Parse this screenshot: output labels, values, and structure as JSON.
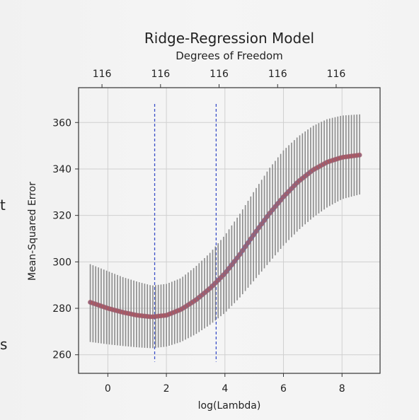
{
  "slide_fragments": [
    "t",
    "s"
  ],
  "chart_data": {
    "type": "scatter",
    "title": "Ridge-Regression Model",
    "top_axis_label": "Degrees of Freedom",
    "top_tick_labels": [
      "116",
      "116",
      "116",
      "116",
      "116"
    ],
    "xlabel": "log(Lambda)",
    "ylabel": "Mean-Squared Error",
    "xlim": [
      -1.0,
      9.3
    ],
    "ylim": [
      252,
      375
    ],
    "x_ticks": [
      0,
      2,
      4,
      6,
      8
    ],
    "y_ticks": [
      260,
      280,
      300,
      320,
      340,
      360
    ],
    "grid": true,
    "vlines": [
      1.6,
      3.7
    ],
    "vline_range": [
      257,
      368
    ],
    "curve": {
      "x": [
        -0.6,
        0.0,
        0.5,
        1.0,
        1.5,
        2.0,
        2.5,
        3.0,
        3.5,
        4.0,
        4.5,
        5.0,
        5.5,
        6.0,
        6.5,
        7.0,
        7.5,
        8.0,
        8.6
      ],
      "y": [
        282.6,
        280.0,
        278.3,
        277.0,
        276.3,
        277.0,
        279.5,
        283.5,
        288.7,
        295.0,
        303.0,
        312.0,
        320.5,
        328.0,
        334.5,
        339.5,
        343.0,
        345.0,
        346.0
      ],
      "lower": [
        265.5,
        264.5,
        263.8,
        263.2,
        262.8,
        263.5,
        265.5,
        268.8,
        273.0,
        278.0,
        284.5,
        292.0,
        299.5,
        307.0,
        313.5,
        319.0,
        323.5,
        327.0,
        329.0
      ],
      "upper": [
        299.0,
        296.0,
        293.5,
        291.5,
        289.8,
        290.5,
        293.0,
        298.0,
        304.0,
        311.5,
        320.5,
        330.5,
        340.0,
        348.0,
        354.0,
        358.5,
        361.5,
        363.0,
        363.5
      ]
    },
    "colors": {
      "point": "#c0504d",
      "line": "#4a6fb0",
      "errorbar": "#8a8a8a",
      "vline": "#3a4fc8",
      "grid": "#d0d0d0"
    }
  }
}
